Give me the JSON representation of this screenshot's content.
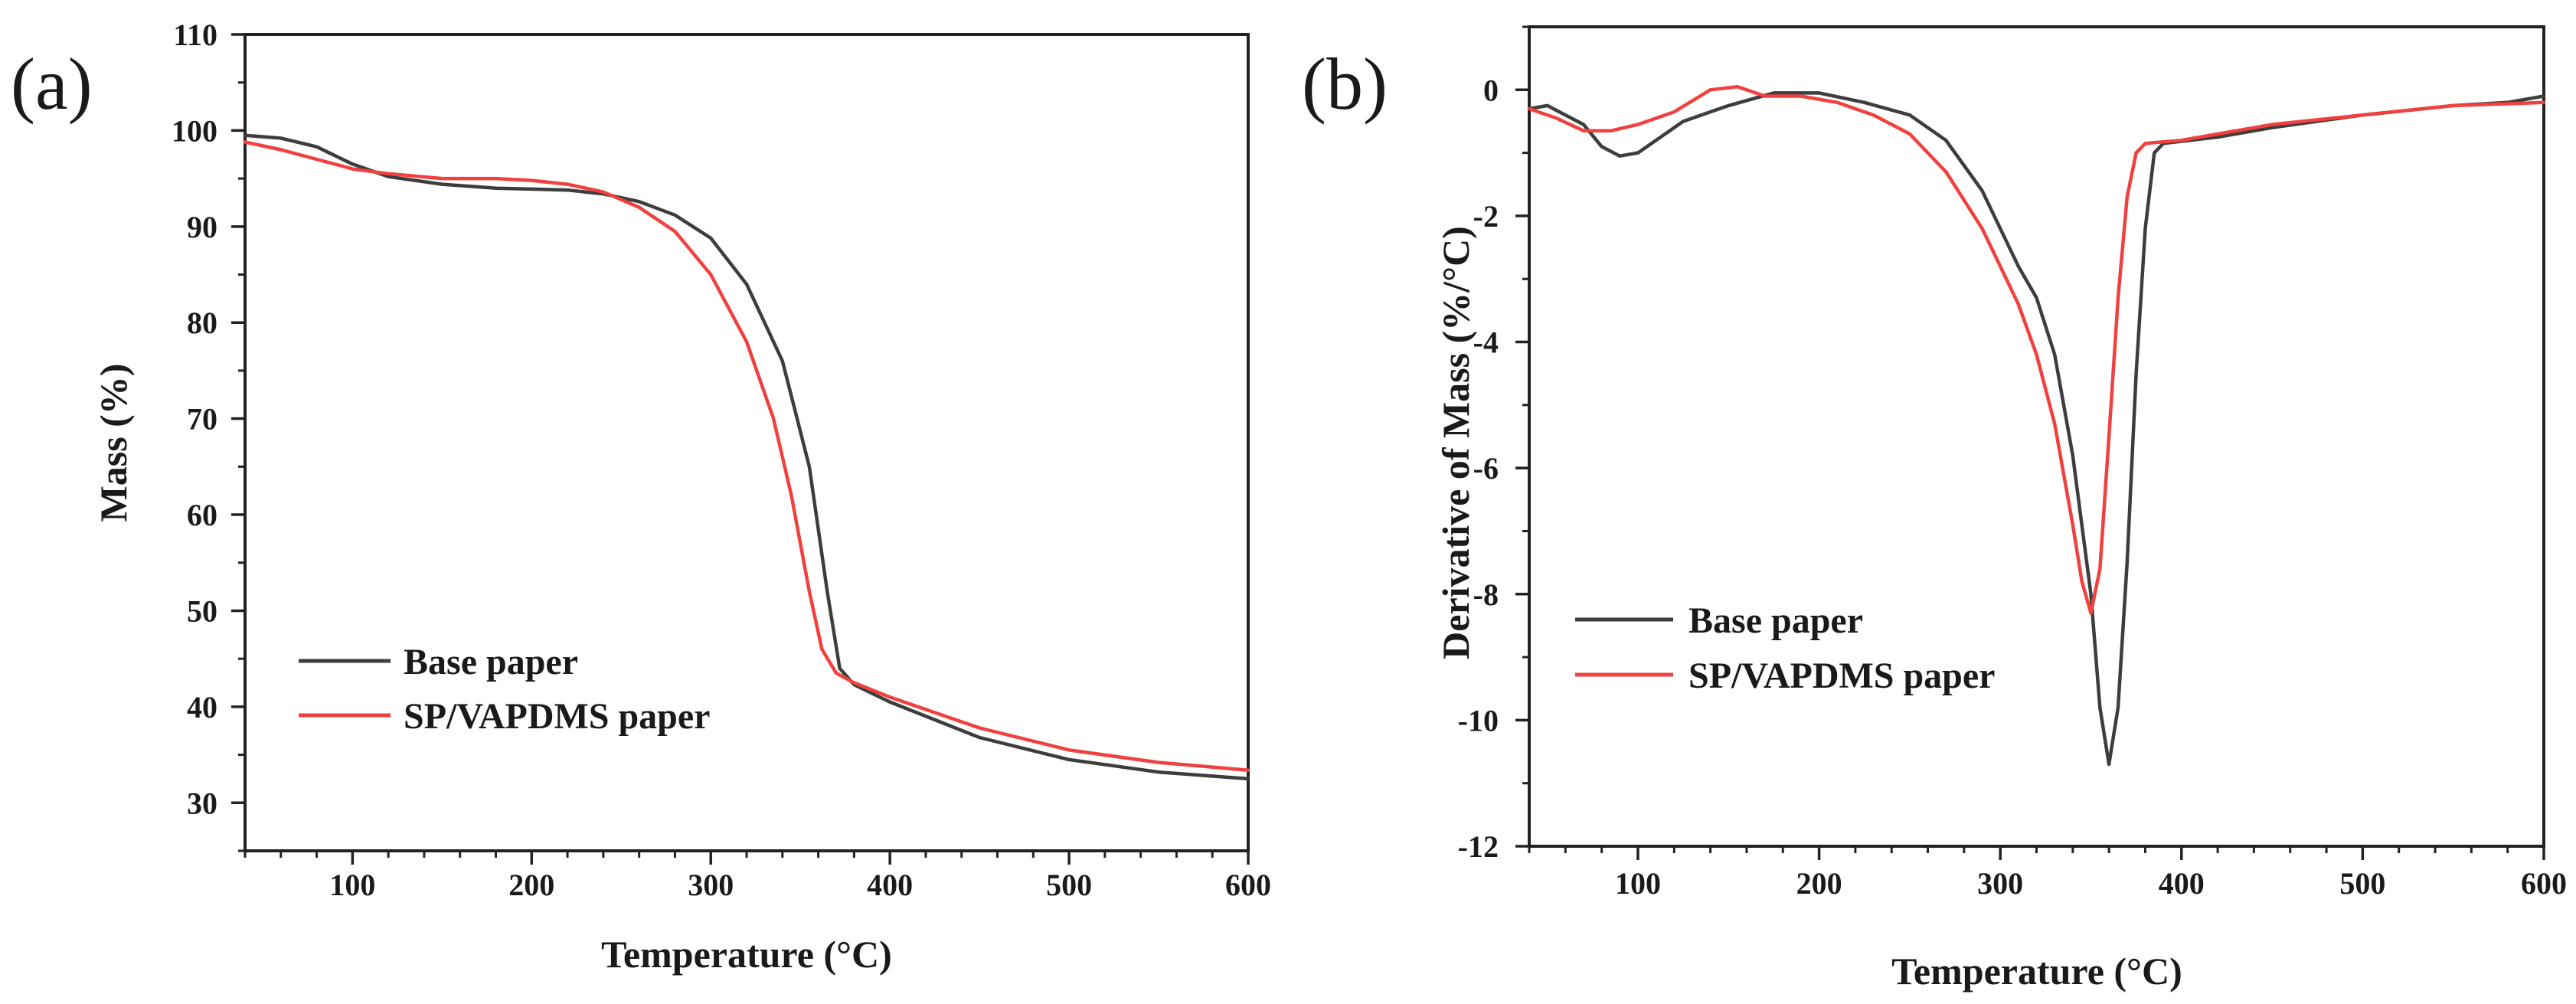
{
  "chart_data": [
    {
      "type": "line",
      "panel_label": "(a)",
      "title": "",
      "xlabel": "Temperature (°C)",
      "ylabel": "Mass (%)",
      "xlim": [
        40,
        600
      ],
      "ylim": [
        25,
        110
      ],
      "x_ticks": [
        100,
        200,
        300,
        400,
        500,
        600
      ],
      "y_ticks": [
        30,
        40,
        50,
        60,
        70,
        80,
        90,
        100,
        110
      ],
      "legend_position": "bottom-left",
      "series": [
        {
          "name": "Base paper",
          "color": "#3d3d3d",
          "points": [
            [
              40,
              99.5
            ],
            [
              60,
              99.2
            ],
            [
              80,
              98.3
            ],
            [
              100,
              96.5
            ],
            [
              120,
              95.2
            ],
            [
              150,
              94.4
            ],
            [
              180,
              94.0
            ],
            [
              200,
              93.9
            ],
            [
              220,
              93.8
            ],
            [
              240,
              93.4
            ],
            [
              260,
              92.6
            ],
            [
              280,
              91.2
            ],
            [
              300,
              88.8
            ],
            [
              320,
              84.0
            ],
            [
              340,
              76.0
            ],
            [
              355,
              65.0
            ],
            [
              365,
              52.0
            ],
            [
              372,
              44.0
            ],
            [
              380,
              42.3
            ],
            [
              400,
              40.5
            ],
            [
              450,
              36.8
            ],
            [
              500,
              34.5
            ],
            [
              550,
              33.2
            ],
            [
              600,
              32.5
            ]
          ]
        },
        {
          "name": "SP/VAPDMS paper",
          "color": "#f0413e",
          "points": [
            [
              40,
              98.8
            ],
            [
              60,
              98.0
            ],
            [
              80,
              97.0
            ],
            [
              100,
              96.0
            ],
            [
              120,
              95.5
            ],
            [
              150,
              95.0
            ],
            [
              180,
              95.0
            ],
            [
              200,
              94.8
            ],
            [
              220,
              94.4
            ],
            [
              240,
              93.6
            ],
            [
              260,
              92.0
            ],
            [
              280,
              89.5
            ],
            [
              300,
              85.0
            ],
            [
              320,
              78.0
            ],
            [
              335,
              70.0
            ],
            [
              345,
              62.0
            ],
            [
              355,
              52.0
            ],
            [
              362,
              46.0
            ],
            [
              370,
              43.5
            ],
            [
              380,
              42.5
            ],
            [
              400,
              41.0
            ],
            [
              450,
              37.8
            ],
            [
              500,
              35.5
            ],
            [
              550,
              34.2
            ],
            [
              600,
              33.4
            ]
          ]
        }
      ]
    },
    {
      "type": "line",
      "panel_label": "(b)",
      "title": "",
      "xlabel": "Temperature (°C)",
      "ylabel": "Derivative of Mass (%/°C)",
      "xlim": [
        40,
        600
      ],
      "ylim": [
        -12,
        1
      ],
      "x_ticks": [
        100,
        200,
        300,
        400,
        500,
        600
      ],
      "y_ticks": [
        0,
        -2,
        -4,
        -6,
        -8,
        -10,
        -12
      ],
      "legend_position": "bottom-left",
      "series": [
        {
          "name": "Base paper",
          "color": "#3d3d3d",
          "points": [
            [
              40,
              -0.3
            ],
            [
              50,
              -0.25
            ],
            [
              60,
              -0.4
            ],
            [
              70,
              -0.55
            ],
            [
              80,
              -0.9
            ],
            [
              90,
              -1.05
            ],
            [
              100,
              -1.0
            ],
            [
              110,
              -0.8
            ],
            [
              125,
              -0.5
            ],
            [
              150,
              -0.25
            ],
            [
              175,
              -0.05
            ],
            [
              200,
              -0.05
            ],
            [
              225,
              -0.2
            ],
            [
              250,
              -0.4
            ],
            [
              270,
              -0.8
            ],
            [
              290,
              -1.6
            ],
            [
              310,
              -2.8
            ],
            [
              320,
              -3.3
            ],
            [
              330,
              -4.2
            ],
            [
              340,
              -5.8
            ],
            [
              350,
              -8.0
            ],
            [
              355,
              -9.8
            ],
            [
              360,
              -10.7
            ],
            [
              365,
              -9.8
            ],
            [
              370,
              -7.5
            ],
            [
              375,
              -4.5
            ],
            [
              380,
              -2.2
            ],
            [
              385,
              -1.0
            ],
            [
              390,
              -0.85
            ],
            [
              420,
              -0.75
            ],
            [
              450,
              -0.6
            ],
            [
              500,
              -0.4
            ],
            [
              550,
              -0.25
            ],
            [
              580,
              -0.2
            ],
            [
              600,
              -0.1
            ]
          ]
        },
        {
          "name": "SP/VAPDMS paper",
          "color": "#f0413e",
          "points": [
            [
              40,
              -0.3
            ],
            [
              55,
              -0.45
            ],
            [
              70,
              -0.65
            ],
            [
              85,
              -0.65
            ],
            [
              100,
              -0.55
            ],
            [
              120,
              -0.35
            ],
            [
              140,
              0.0
            ],
            [
              155,
              0.05
            ],
            [
              170,
              -0.1
            ],
            [
              190,
              -0.1
            ],
            [
              210,
              -0.2
            ],
            [
              230,
              -0.4
            ],
            [
              250,
              -0.7
            ],
            [
              270,
              -1.3
            ],
            [
              290,
              -2.2
            ],
            [
              310,
              -3.4
            ],
            [
              320,
              -4.2
            ],
            [
              330,
              -5.3
            ],
            [
              340,
              -6.9
            ],
            [
              345,
              -7.8
            ],
            [
              350,
              -8.3
            ],
            [
              355,
              -7.6
            ],
            [
              360,
              -5.5
            ],
            [
              365,
              -3.3
            ],
            [
              370,
              -1.7
            ],
            [
              375,
              -1.0
            ],
            [
              380,
              -0.85
            ],
            [
              400,
              -0.8
            ],
            [
              450,
              -0.55
            ],
            [
              500,
              -0.4
            ],
            [
              550,
              -0.25
            ],
            [
              600,
              -0.2
            ]
          ]
        }
      ]
    }
  ]
}
